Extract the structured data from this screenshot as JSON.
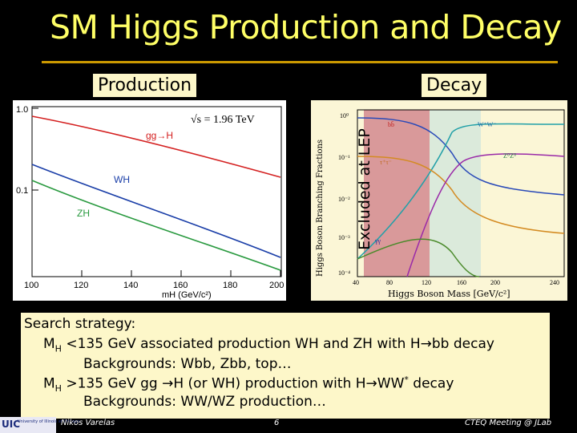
{
  "title": "SM Higgs Production and Decay",
  "production_label": "Production",
  "decay_label": "Decay",
  "excluded_label": "Excluded at LEP",
  "production_plot": {
    "sqrt_s": "√s = 1.96 TeV",
    "x_label": "mH (GeV/c²)",
    "x_ticks": [
      "100",
      "120",
      "140",
      "160",
      "180",
      "200"
    ],
    "y_ticks": [
      "1.0",
      "0.1"
    ],
    "curves": [
      {
        "label": "gg→H",
        "color": "#d42020"
      },
      {
        "label": "WH",
        "color": "#1a3ea8"
      },
      {
        "label": "ZH",
        "color": "#2a9a40"
      }
    ]
  },
  "decay_plot": {
    "y_label": "Higgs Boson Branching Fractions",
    "x_label": "Higgs Boson Mass [GeV/c²]",
    "x_ticks": [
      "40",
      "80",
      "120",
      "160",
      "200",
      "240"
    ],
    "y_ticks": [
      "10⁰",
      "10⁻¹",
      "10⁻²",
      "10⁻³",
      "10⁻⁴"
    ],
    "curve_labels": [
      "bb̄",
      "W⁺W⁻",
      "τ⁺τ⁻",
      "Z⁰Z⁰",
      "γγ"
    ]
  },
  "strategy": {
    "heading": "Search strategy:",
    "line2_a": "M",
    "line2_sub": "H",
    "line2_b": " <135 GeV associated production WH and ZH with H→bb decay",
    "line3": "Backgrounds: Wbb, Zbb, top…",
    "line4_a": "M",
    "line4_sub": "H",
    "line4_b": " >135 GeV gg →H (or WH) production with H→WW",
    "line4_sup": "*",
    "line4_c": " decay",
    "line5": "Backgrounds: WW/WZ production…"
  },
  "footer": {
    "logo": "UIC",
    "logo_sub": "University of Illinois at Chicago",
    "author": "Nikos Varelas",
    "page": "6",
    "meeting": "CTEQ Meeting @ JLab"
  }
}
